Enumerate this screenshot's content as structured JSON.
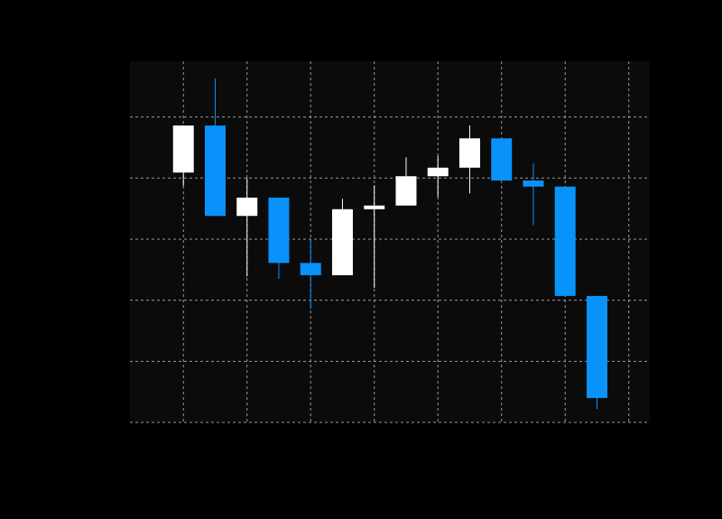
{
  "chart_data": {
    "type": "candlestick",
    "x": [
      0,
      0.5,
      1,
      1.5,
      2,
      2.5,
      3,
      3.5,
      4,
      4.5,
      5,
      5.5,
      6,
      6.5
    ],
    "open": [
      40.9,
      48.6,
      33.8,
      36.8,
      26.1,
      24.1,
      34.9,
      35.5,
      40.3,
      41.7,
      46.5,
      39.6,
      38.6,
      20.7
    ],
    "high": [
      48.6,
      56.3,
      40.0,
      36.8,
      30.0,
      36.6,
      38.8,
      43.4,
      43.6,
      48.6,
      46.5,
      42.4,
      38.6,
      20.7
    ],
    "low": [
      38.7,
      33.8,
      23.9,
      23.5,
      18.6,
      24.1,
      22.0,
      35.5,
      36.9,
      37.5,
      39.6,
      32.3,
      20.7,
      2.2
    ],
    "close": [
      48.6,
      33.8,
      36.8,
      26.1,
      24.1,
      34.9,
      35.5,
      40.3,
      41.7,
      46.5,
      39.6,
      38.6,
      20.7,
      4.0
    ],
    "up_color": "#ffffff",
    "down_color": "#0a92fb",
    "background": "#0b0b0b",
    "xlim": [
      -0.84,
      7.33
    ],
    "xticks": [
      0,
      1,
      2,
      3,
      4,
      5,
      6,
      7
    ],
    "ylim": [
      0,
      59.1
    ],
    "yticks": [
      0,
      10,
      20,
      30,
      40,
      50
    ],
    "grid": true
  }
}
